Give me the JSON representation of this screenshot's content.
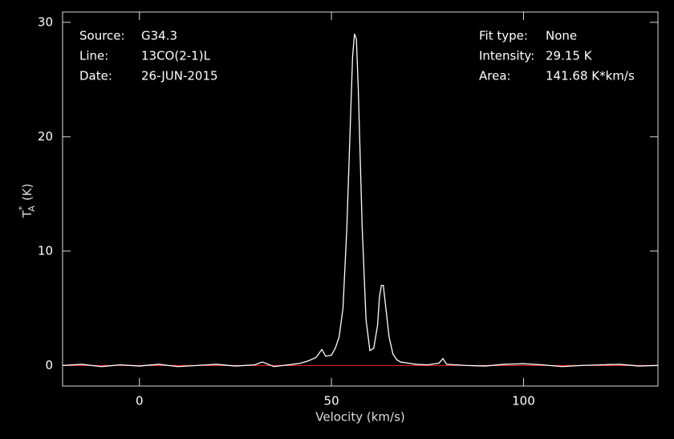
{
  "chart_data": {
    "type": "line",
    "xlabel": "Velocity (km/s)",
    "ylabel": {
      "base": "T",
      "sup": "*",
      "sub": "A",
      "unit": "(K)"
    },
    "annotations_left": [
      {
        "label": "Source:",
        "value": "G34.3"
      },
      {
        "label": "Line:",
        "value": "13CO(2-1)L"
      },
      {
        "label": "Date:",
        "value": "26-JUN-2015"
      }
    ],
    "annotations_right": [
      {
        "label": "Fit type:",
        "value": "None"
      },
      {
        "label": "Intensity:",
        "value": "29.15 K"
      },
      {
        "label": "Area:",
        "value": "141.68 K*km/s"
      }
    ],
    "x": [
      -20,
      -15,
      -10,
      -5,
      0,
      5,
      10,
      15,
      20,
      25,
      30,
      32,
      35,
      40,
      42,
      44,
      46,
      47.5,
      48.5,
      50,
      51,
      52,
      53,
      54,
      55,
      55.5,
      56,
      56.5,
      57,
      58,
      59,
      60,
      61,
      62,
      62.5,
      63,
      63.5,
      64,
      65,
      66,
      67,
      68,
      70,
      72,
      75,
      78,
      79,
      80,
      85,
      90,
      95,
      100,
      105,
      110,
      115,
      120,
      125,
      130,
      135
    ],
    "series": [
      {
        "color": "#ffffff",
        "values": [
          0.0,
          0.1,
          -0.1,
          0.05,
          -0.05,
          0.1,
          -0.1,
          0.0,
          0.1,
          -0.05,
          0.05,
          0.3,
          -0.1,
          0.1,
          0.2,
          0.4,
          0.7,
          1.4,
          0.8,
          0.9,
          1.5,
          2.5,
          5.0,
          12.0,
          22.0,
          27.0,
          29.0,
          28.5,
          24.0,
          12.0,
          4.0,
          1.3,
          1.5,
          3.5,
          6.0,
          7.0,
          7.0,
          5.5,
          2.5,
          1.0,
          0.5,
          0.3,
          0.2,
          0.1,
          0.05,
          0.2,
          0.6,
          0.1,
          0.0,
          -0.05,
          0.1,
          0.15,
          0.05,
          -0.1,
          0.0,
          0.05,
          0.1,
          -0.05,
          0.0
        ]
      }
    ],
    "baseline": {
      "value": 0,
      "color": "#ff2020"
    },
    "xlim": [
      -20,
      135
    ],
    "ylim": [
      -1.8,
      30.9
    ],
    "xticks": [
      0,
      50,
      100
    ],
    "yticks": [
      0,
      10,
      20,
      30
    ]
  }
}
